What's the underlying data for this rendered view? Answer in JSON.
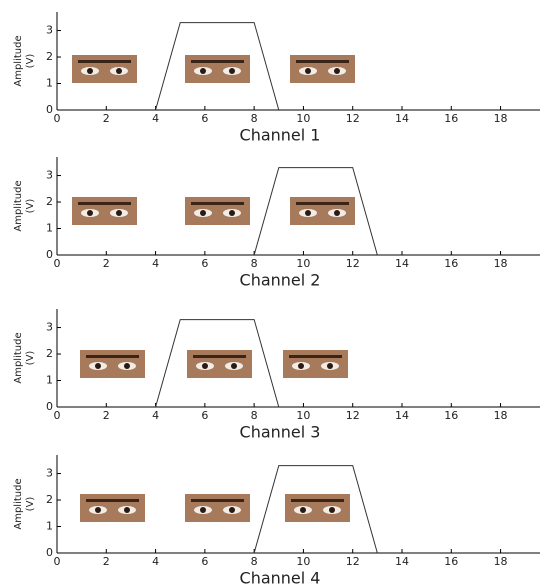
{
  "chart_data": [
    {
      "type": "line",
      "xlabel": "Channel 1",
      "ylabel": [
        "Amplitude",
        "(V)"
      ],
      "x": [
        4,
        5,
        8,
        9
      ],
      "series": [
        {
          "color": "#333333",
          "values": [
            0,
            3.3,
            3.3,
            0
          ]
        }
      ],
      "xlim": [
        0,
        19.6
      ],
      "ylim": [
        0,
        3.7
      ],
      "xticks": [
        0,
        2,
        4,
        6,
        8,
        10,
        12,
        14,
        16,
        18
      ],
      "yticks": [
        0,
        1,
        2,
        3
      ]
    },
    {
      "type": "line",
      "xlabel": "Channel 2",
      "ylabel": [
        "Amplitude",
        "(V)"
      ],
      "x": [
        8,
        9,
        12,
        13
      ],
      "series": [
        {
          "color": "#333333",
          "values": [
            0,
            3.3,
            3.3,
            0
          ]
        }
      ],
      "xlim": [
        0,
        19.6
      ],
      "ylim": [
        0,
        3.7
      ],
      "xticks": [
        0,
        2,
        4,
        6,
        8,
        10,
        12,
        14,
        16,
        18
      ],
      "yticks": [
        0,
        1,
        2,
        3
      ]
    },
    {
      "type": "line",
      "xlabel": "Channel 3",
      "ylabel": [
        "Amplitude",
        "(V)"
      ],
      "x": [
        4,
        5,
        8,
        9
      ],
      "series": [
        {
          "color": "#333333",
          "values": [
            0,
            3.3,
            3.3,
            0
          ]
        }
      ],
      "xlim": [
        0,
        19.6
      ],
      "ylim": [
        0,
        3.7
      ],
      "xticks": [
        0,
        2,
        4,
        6,
        8,
        10,
        12,
        14,
        16,
        18
      ],
      "yticks": [
        0,
        1,
        2,
        3
      ]
    },
    {
      "type": "line",
      "xlabel": "Channel 4",
      "ylabel": [
        "Amplitude",
        "(V)"
      ],
      "x": [
        8,
        9,
        12,
        13
      ],
      "series": [
        {
          "color": "#333333",
          "values": [
            0,
            3.3,
            3.3,
            0
          ]
        }
      ],
      "xlim": [
        0,
        19.6
      ],
      "ylim": [
        0,
        3.7
      ],
      "xticks": [
        0,
        2,
        4,
        6,
        8,
        10,
        12,
        14,
        16,
        18
      ],
      "yticks": [
        0,
        1,
        2,
        3
      ]
    }
  ]
}
